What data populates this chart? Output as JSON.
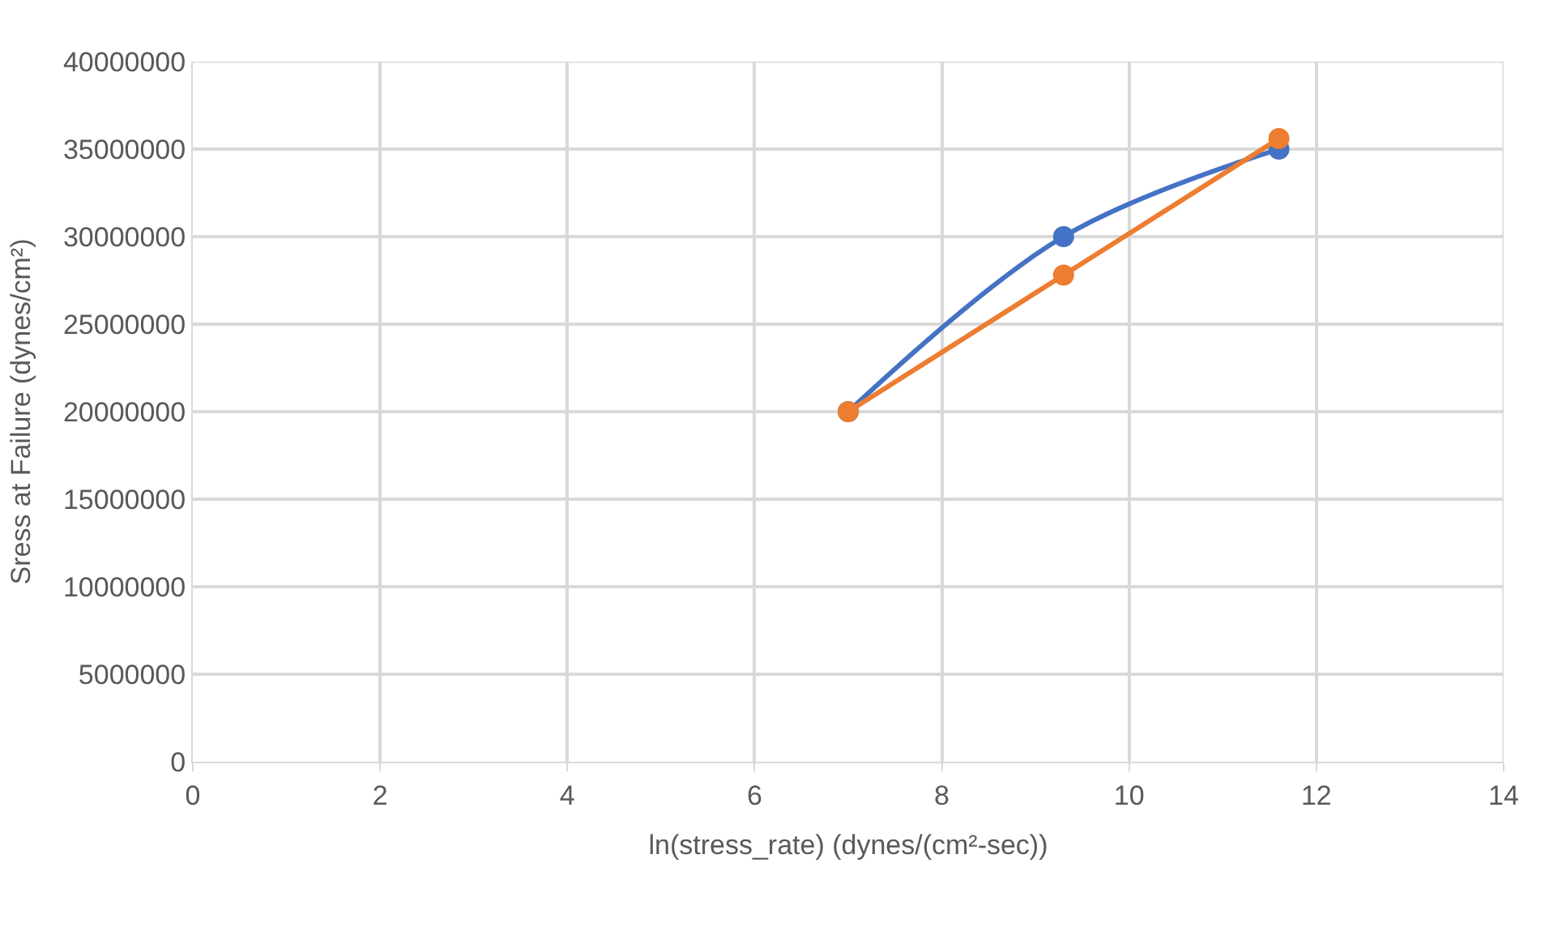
{
  "chart_data": {
    "type": "line",
    "xlabel": "ln(stress_rate) (dynes/(cm²-sec))",
    "ylabel": "Sress at Failure (dynes/cm²)",
    "series": [
      {
        "color": "#4472c4",
        "x": [
          7.0,
          9.3,
          11.6
        ],
        "values": [
          20000000,
          30000000,
          35000000
        ]
      },
      {
        "color": "#ed7d31",
        "x": [
          7.0,
          9.3,
          11.6
        ],
        "values": [
          20000000,
          27800000,
          35600000
        ]
      }
    ],
    "xlim": [
      0,
      14
    ],
    "xticks": [
      0,
      2,
      4,
      6,
      8,
      10,
      12,
      14
    ],
    "ylim": [
      0,
      40000000
    ],
    "yticks": [
      0,
      5000000,
      10000000,
      15000000,
      20000000,
      25000000,
      30000000,
      35000000,
      40000000
    ],
    "grid": true,
    "marker": "circle",
    "line_style": "solid"
  }
}
